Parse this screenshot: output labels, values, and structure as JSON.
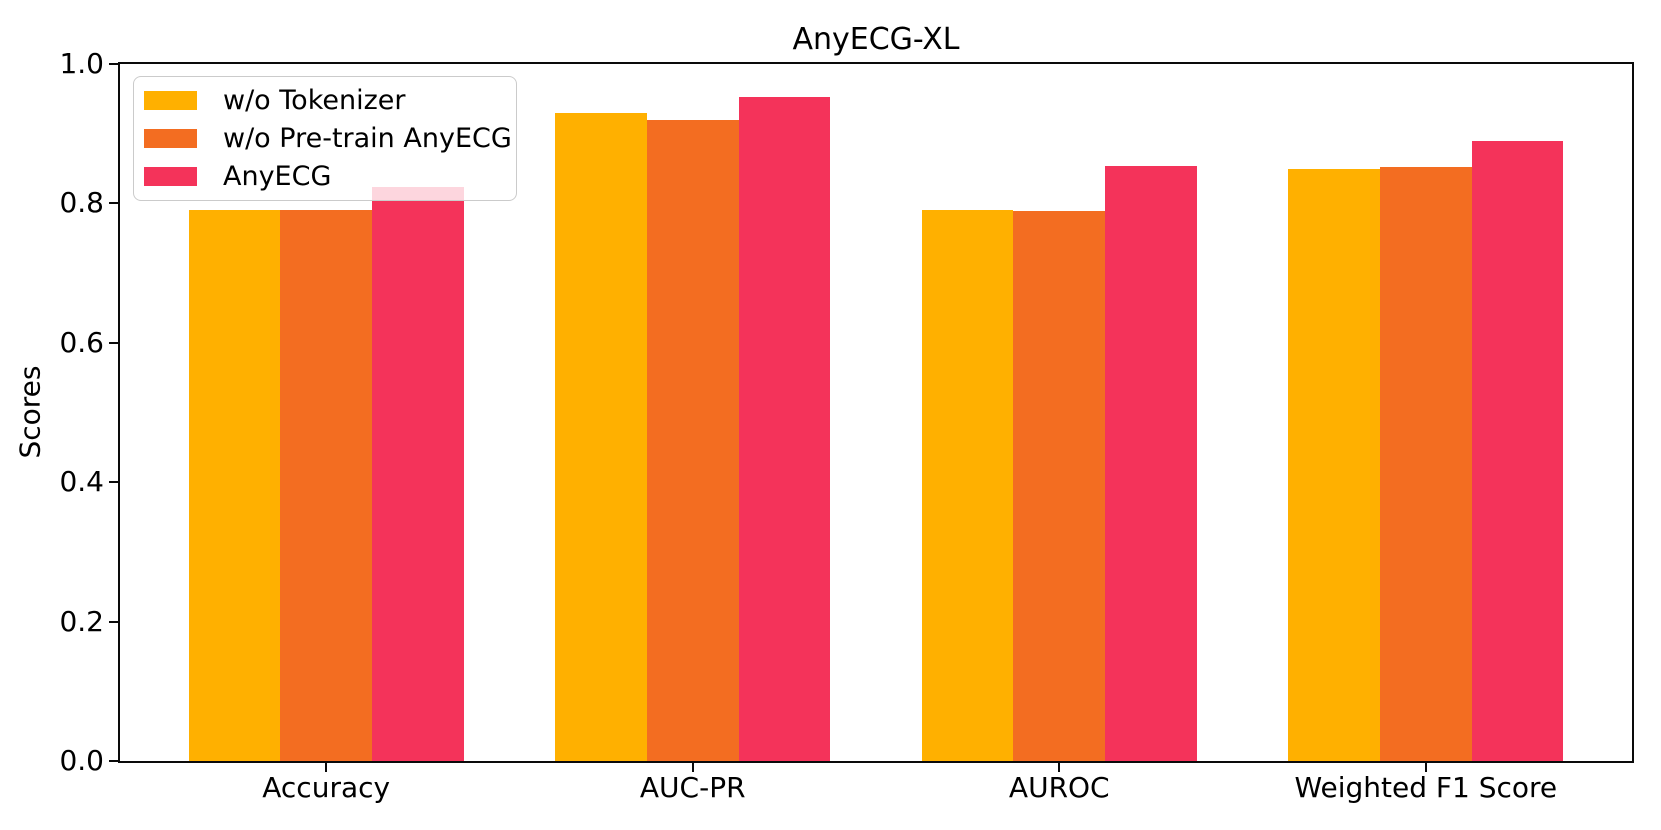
{
  "chart_data": {
    "type": "bar",
    "title": "AnyECG-XL",
    "ylabel": "Scores",
    "xlabel": "",
    "categories": [
      "Accuracy",
      "AUC-PR",
      "AUROC",
      "Weighted F1 Score"
    ],
    "series": [
      {
        "name": "w/o Tokenizer",
        "color": "#FFB000",
        "values": [
          0.79,
          0.93,
          0.79,
          0.849
        ]
      },
      {
        "name": "w/o Pre-train AnyECG",
        "color": "#F36D21",
        "values": [
          0.791,
          0.919,
          0.789,
          0.852
        ]
      },
      {
        "name": "AnyECG",
        "color": "#F4335A",
        "values": [
          0.823,
          0.952,
          0.853,
          0.889
        ]
      }
    ],
    "ylim": [
      0.0,
      1.0
    ],
    "yticks": [
      0.0,
      0.2,
      0.4,
      0.6,
      0.8,
      1.0
    ],
    "ytick_labels": [
      "0.0",
      "0.2",
      "0.4",
      "0.6",
      "0.8",
      "1.0"
    ],
    "bar_width_units": 0.25,
    "grid": false,
    "legend_position": "upper left",
    "legend_background_alpha": 0.8,
    "background_color": "#ffffff",
    "spine_color": "#0a0a0a"
  }
}
